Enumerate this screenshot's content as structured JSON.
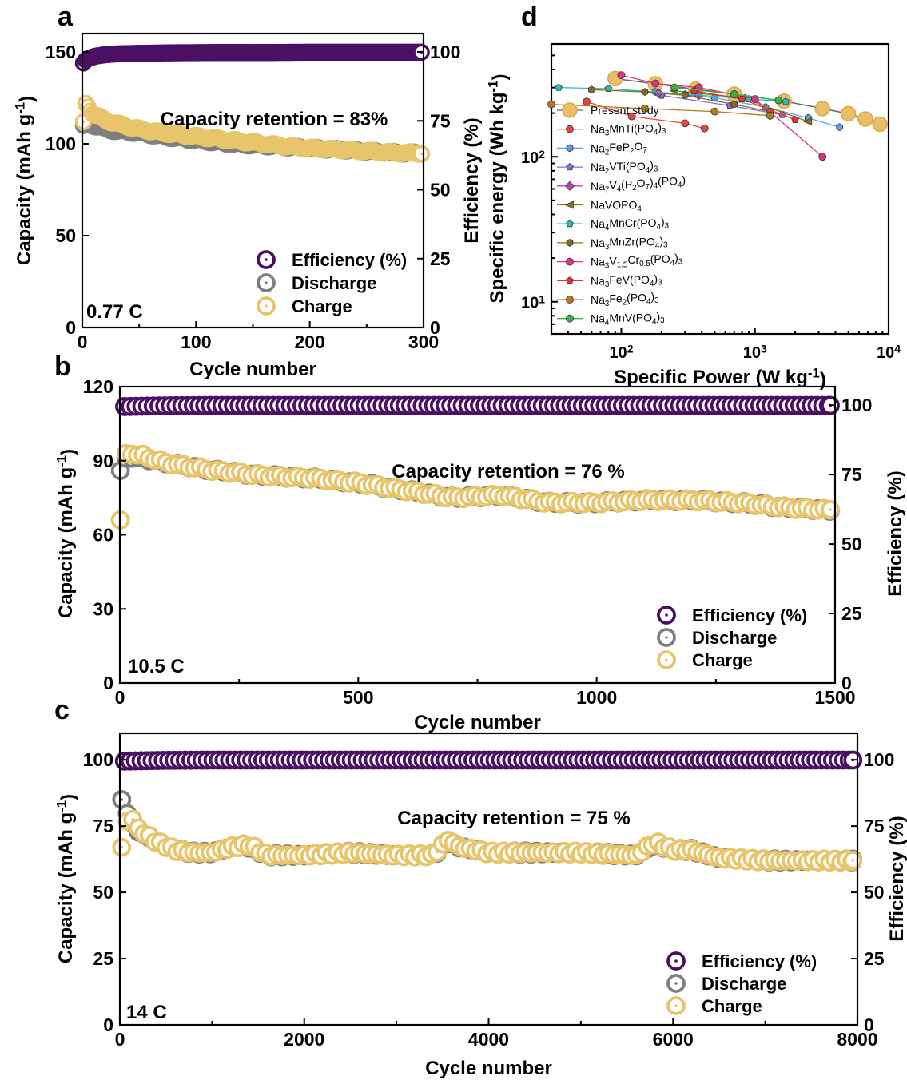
{
  "colors": {
    "efficiency": "#4b0f63",
    "discharge": "#7f7f7f",
    "charge": "#e8c46a"
  },
  "panels": [
    {
      "id": "a",
      "label": "a",
      "xlabel": "Cycle number",
      "ylabel": "Capacity (mAh g-1)",
      "y2label": "Efficiency (%)",
      "xticks": [
        "0",
        "100",
        "200",
        "300"
      ],
      "yticks": [
        "0",
        "50",
        "100",
        "150"
      ],
      "y2ticks": [
        "0",
        "25",
        "50",
        "75",
        "100"
      ],
      "annotation": "Capacity retention = 83%",
      "rate": "0.77 C",
      "legend": [
        "Efficiency (%)",
        "Discharge",
        "Charge"
      ]
    },
    {
      "id": "b",
      "label": "b",
      "xlabel": "Cycle number",
      "ylabel": "Capacity (mAh g-1)",
      "y2label": "Efficiency (%)",
      "xticks": [
        "0",
        "500",
        "1000",
        "1500"
      ],
      "yticks": [
        "0",
        "30",
        "60",
        "90",
        "120"
      ],
      "y2ticks": [
        "0",
        "25",
        "50",
        "75",
        "100"
      ],
      "annotation": "Capacity retention = 76 %",
      "rate": "10.5 C",
      "legend": [
        "Efficiency (%)",
        "Discharge",
        "Charge"
      ]
    },
    {
      "id": "c",
      "label": "c",
      "xlabel": "Cycle number",
      "ylabel": "Capacity (mAh g-1)",
      "y2label": "Efficiency (%)",
      "xticks": [
        "0",
        "2000",
        "4000",
        "6000",
        "8000"
      ],
      "yticks": [
        "0",
        "25",
        "50",
        "75",
        "100"
      ],
      "y2ticks": [
        "0",
        "25",
        "50",
        "75",
        "100"
      ],
      "annotation": "Capacity retention = 75 %",
      "rate": "14 C",
      "legend": [
        "Efficiency (%)",
        "Discharge",
        "Charge"
      ]
    },
    {
      "id": "d",
      "label": "d",
      "xlabel": "Specific Power (W kg-1)",
      "ylabel": "Specific energy (Wh kg-1)",
      "xticks": [
        "10^2",
        "10^3",
        "10^4"
      ],
      "yticks": [
        "10^1",
        "10^2"
      ],
      "legend": [
        "Present study",
        "Na3MnTi(PO4)3",
        "Na2FeP2O7",
        "Na2VTi(PO4)3",
        "Na7V4(P2O7)4(PO4)",
        "NaVOPO4",
        "Na4MnCr(PO4)3",
        "Na3MnZr(PO4)3",
        "Na3V1.5Cr0.5(PO4)3",
        "Na3FeV(PO4)3",
        "Na3Fe2(PO4)3",
        "Na4MnV(PO4)3"
      ]
    }
  ],
  "chart_data": [
    {
      "type": "scatter",
      "panel": "a",
      "xlim": [
        0,
        300
      ],
      "ylim": [
        0,
        160
      ],
      "y2lim": [
        0,
        106.67
      ],
      "series": [
        {
          "name": "Efficiency (%)",
          "axis": "right",
          "x": [
            1,
            2,
            3,
            5,
            8,
            12,
            20,
            30,
            50,
            80,
            120,
            160,
            200,
            250,
            298
          ],
          "y": [
            96,
            96.5,
            97,
            97.5,
            98,
            98.5,
            99,
            99.3,
            99.5,
            99.7,
            99.8,
            99.8,
            99.9,
            99.9,
            99.9
          ]
        },
        {
          "name": "Discharge",
          "axis": "left",
          "x": [
            1,
            3,
            5,
            10,
            20,
            30,
            50,
            70,
            100,
            130,
            160,
            190,
            220,
            250,
            280,
            298
          ],
          "y": [
            110,
            112,
            111,
            110,
            108,
            107,
            106,
            104,
            102,
            100,
            99,
            98,
            97,
            96,
            95,
            95
          ]
        },
        {
          "name": "Charge",
          "axis": "left",
          "x": [
            1,
            3,
            5,
            10,
            20,
            30,
            50,
            70,
            100,
            130,
            160,
            190,
            220,
            250,
            280,
            298
          ],
          "y": [
            112,
            122,
            120,
            116,
            113,
            111,
            108,
            106,
            104,
            102,
            100,
            98,
            97,
            96,
            95,
            95
          ]
        }
      ]
    },
    {
      "type": "scatter",
      "panel": "b",
      "xlim": [
        0,
        1500
      ],
      "ylim": [
        0,
        120
      ],
      "y2lim": [
        0,
        106.67
      ],
      "series": [
        {
          "name": "Efficiency (%)",
          "axis": "right",
          "x": [
            10,
            100,
            200,
            300,
            400,
            500,
            600,
            700,
            800,
            900,
            1000,
            1100,
            1200,
            1300,
            1400,
            1490
          ],
          "y": [
            99.5,
            99.8,
            99.9,
            99.9,
            99.9,
            99.9,
            99.9,
            99.9,
            99.9,
            99.9,
            99.9,
            99.9,
            99.9,
            99.9,
            99.9,
            99.9
          ]
        },
        {
          "name": "Discharge",
          "axis": "left",
          "x": [
            1,
            10,
            50,
            100,
            200,
            300,
            400,
            500,
            600,
            700,
            800,
            900,
            1000,
            1100,
            1200,
            1300,
            1400,
            1490
          ],
          "y": [
            86,
            91,
            91,
            89,
            86,
            84,
            83,
            81,
            78,
            75,
            76,
            73,
            73,
            74,
            74,
            73,
            71,
            70
          ]
        },
        {
          "name": "Charge",
          "axis": "left",
          "x": [
            1,
            10,
            50,
            100,
            200,
            300,
            400,
            500,
            600,
            700,
            800,
            900,
            1000,
            1100,
            1200,
            1300,
            1400,
            1490
          ],
          "y": [
            66,
            93,
            92,
            89,
            86,
            84,
            83,
            81,
            78,
            75,
            76,
            73,
            73,
            74,
            74,
            73,
            71,
            70
          ]
        }
      ]
    },
    {
      "type": "scatter",
      "panel": "c",
      "xlim": [
        0,
        8000
      ],
      "ylim": [
        0,
        110
      ],
      "y2lim": [
        0,
        110
      ],
      "series": [
        {
          "name": "Efficiency (%)",
          "axis": "right",
          "x": [
            50,
            500,
            1000,
            1500,
            2000,
            2500,
            3000,
            3500,
            4000,
            4500,
            5000,
            5500,
            6000,
            6500,
            7000,
            7500,
            7950
          ],
          "y": [
            99.5,
            99.8,
            99.9,
            99.9,
            99.9,
            99.9,
            99.9,
            99.9,
            99.9,
            99.9,
            99.9,
            99.9,
            99.9,
            99.9,
            99.9,
            99.9,
            99.9
          ]
        },
        {
          "name": "Discharge",
          "axis": "left",
          "x": [
            20,
            100,
            200,
            400,
            600,
            800,
            1000,
            1200,
            1400,
            1600,
            2000,
            2500,
            3000,
            3400,
            3550,
            3700,
            4000,
            5000,
            5600,
            5800,
            6000,
            6200,
            6500,
            7000,
            7500,
            7950
          ],
          "y": [
            85,
            78,
            73,
            69,
            66,
            65,
            65,
            67,
            67,
            64,
            64,
            65,
            64,
            64,
            69,
            67,
            65,
            65,
            64,
            68,
            66,
            66,
            63,
            62,
            62,
            62
          ]
        },
        {
          "name": "Charge",
          "axis": "left",
          "x": [
            20,
            100,
            200,
            400,
            600,
            800,
            1000,
            1200,
            1400,
            1600,
            2000,
            2500,
            3000,
            3400,
            3550,
            3700,
            4000,
            5000,
            5600,
            5800,
            6000,
            6200,
            6500,
            7000,
            7500,
            7950
          ],
          "y": [
            67,
            80,
            74,
            69,
            66,
            65,
            65,
            67,
            68,
            64,
            64,
            65,
            64,
            64,
            70,
            67,
            65,
            65,
            64,
            69,
            66,
            66,
            63,
            62,
            62,
            62
          ]
        }
      ]
    },
    {
      "type": "line",
      "panel": "d",
      "xscale": "log",
      "yscale": "log",
      "xlim": [
        30,
        10000
      ],
      "ylim": [
        6,
        600
      ],
      "series": [
        {
          "name": "Present study",
          "color": "#e9bd6a",
          "marker": "circle-big",
          "points": [
            [
              90,
              346
            ],
            [
              180,
              318
            ],
            [
              360,
              292
            ],
            [
              700,
              270
            ],
            [
              1650,
              242
            ],
            [
              3200,
              215
            ],
            [
              5000,
              198
            ],
            [
              6700,
              182
            ],
            [
              8600,
              168
            ]
          ]
        },
        {
          "name": "Na3MnTi(PO4)3",
          "color": "#e74545",
          "marker": "circle",
          "points": [
            [
              55,
              240
            ],
            [
              120,
              190
            ],
            [
              300,
              170
            ],
            [
              420,
              157
            ]
          ]
        },
        {
          "name": "Na2FeP2O7",
          "color": "#5aa1e0",
          "marker": "hexagon",
          "points": [
            [
              180,
              280
            ],
            [
              500,
              255
            ],
            [
              1200,
              220
            ],
            [
              2500,
              185
            ],
            [
              4300,
              160
            ]
          ]
        },
        {
          "name": "Na2VTi(PO4)3",
          "color": "#8d6cd8",
          "marker": "pentagon",
          "points": [
            [
              200,
              265
            ],
            [
              650,
              225
            ],
            [
              1600,
              195
            ]
          ]
        },
        {
          "name": "Na7V4(P2O7)4(PO4)",
          "color": "#c040c0",
          "marker": "diamond",
          "points": [
            [
              190,
              275
            ],
            [
              380,
              265
            ]
          ]
        },
        {
          "name": "NaVOPO4",
          "color": "#8a7a10",
          "marker": "triangle-left",
          "points": [
            [
              250,
              285
            ],
            [
              800,
              255
            ],
            [
              2500,
              175
            ]
          ]
        },
        {
          "name": "Na4MnCr(PO4)3",
          "color": "#20c0c0",
          "marker": "pentagon",
          "points": [
            [
              34,
              300
            ],
            [
              80,
              295
            ],
            [
              300,
              270
            ],
            [
              900,
              250
            ],
            [
              1700,
              240
            ]
          ]
        },
        {
          "name": "Na3MnZr(PO4)3",
          "color": "#8a6a20",
          "marker": "hexagon",
          "points": [
            [
              60,
              290
            ],
            [
              150,
              280
            ],
            [
              300,
              265
            ],
            [
              700,
              230
            ],
            [
              1300,
              205
            ]
          ]
        },
        {
          "name": "Na3V1.5Cr0.5(PO4)3",
          "color": "#e0308a",
          "marker": "circle",
          "points": [
            [
              100,
              365
            ],
            [
              180,
              320
            ],
            [
              380,
              300
            ],
            [
              1000,
              250
            ],
            [
              3200,
              100
            ]
          ]
        },
        {
          "name": "Na3FeV(PO4)3",
          "color": "#f03030",
          "marker": "pentagon",
          "points": [
            [
              350,
              285
            ],
            [
              800,
              250
            ],
            [
              2000,
              180
            ]
          ]
        },
        {
          "name": "Na3Fe2(PO4)3",
          "color": "#b07a20",
          "marker": "circle",
          "points": [
            [
              30,
              230
            ],
            [
              150,
              215
            ],
            [
              500,
              205
            ],
            [
              1300,
              192
            ]
          ]
        },
        {
          "name": "Na4MnV(PO4)3",
          "color": "#3cb043",
          "marker": "circle",
          "points": [
            [
              250,
              300
            ],
            [
              700,
              270
            ],
            [
              1500,
              245
            ]
          ]
        }
      ]
    }
  ]
}
